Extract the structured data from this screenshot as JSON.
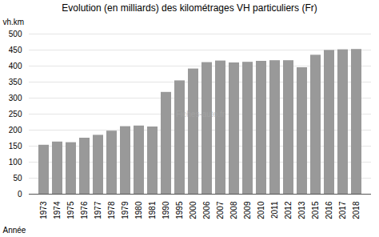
{
  "chart_data": {
    "type": "bar",
    "title": "Evolution (en milliards) des kilométrages VH particuliers (Fr)",
    "xlabel": "Année",
    "ylabel": "vh.km",
    "annotations": [
      "Fiches-auto.fr"
    ],
    "categories": [
      "1973",
      "1974",
      "1975",
      "1976",
      "1977",
      "1978",
      "1979",
      "1980",
      "1981",
      "1990",
      "1995",
      "2000",
      "2006",
      "2007",
      "2008",
      "2009",
      "2010",
      "2011",
      "2012",
      "2013",
      "2015",
      "2016",
      "2017",
      "2018"
    ],
    "values": [
      153,
      163,
      161,
      175,
      184,
      197,
      211,
      213,
      210,
      318,
      354,
      391,
      411,
      416,
      410,
      412,
      415,
      417,
      417,
      395,
      434,
      449,
      451,
      452
    ],
    "color": "#999999",
    "ylim": [
      0,
      500
    ],
    "yticks": [
      0,
      50,
      100,
      150,
      200,
      250,
      300,
      350,
      400,
      450,
      500
    ],
    "grid": true
  }
}
